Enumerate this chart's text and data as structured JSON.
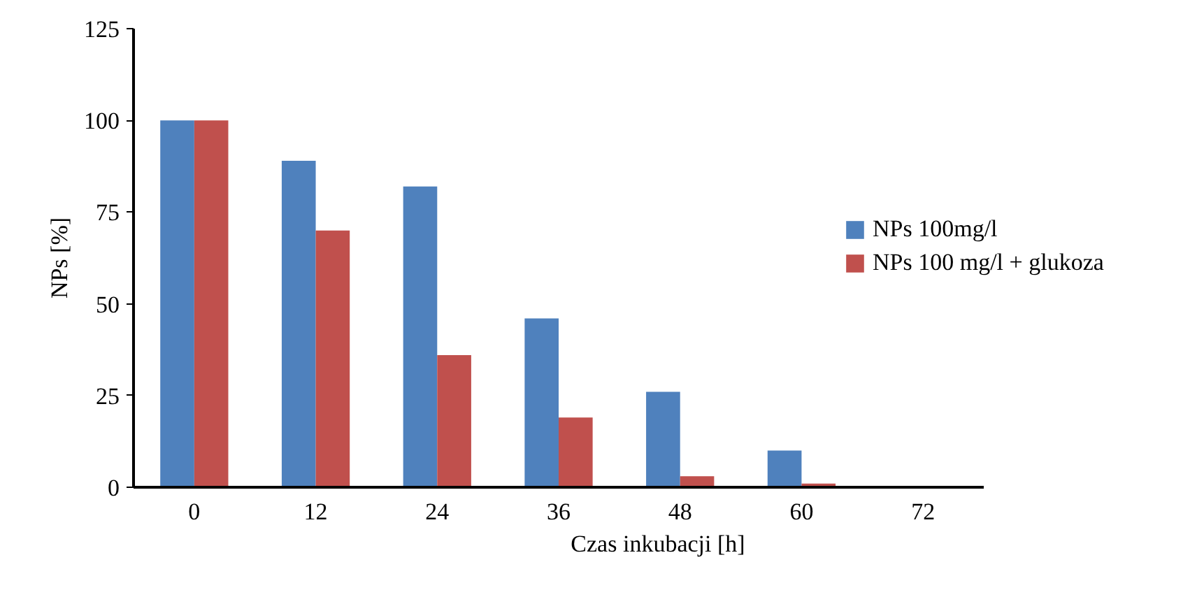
{
  "chart_data": {
    "type": "bar",
    "xlabel": "Czas inkubacji [h]",
    "ylabel": "NPs [%]",
    "categories": [
      "0",
      "12",
      "24",
      "36",
      "48",
      "60",
      "72"
    ],
    "series": [
      {
        "name": "NPs 100mg/l",
        "color": "#4f81bd",
        "values": [
          100,
          89,
          82,
          46,
          26,
          10,
          null
        ]
      },
      {
        "name": "NPs 100 mg/l + glukoza",
        "color": "#c0504d",
        "values": [
          100,
          70,
          36,
          19,
          3,
          1,
          null
        ]
      }
    ],
    "ylim": [
      0,
      125
    ],
    "yticks": [
      0,
      25,
      50,
      75,
      100,
      125
    ],
    "grid": false,
    "legend": "right"
  }
}
